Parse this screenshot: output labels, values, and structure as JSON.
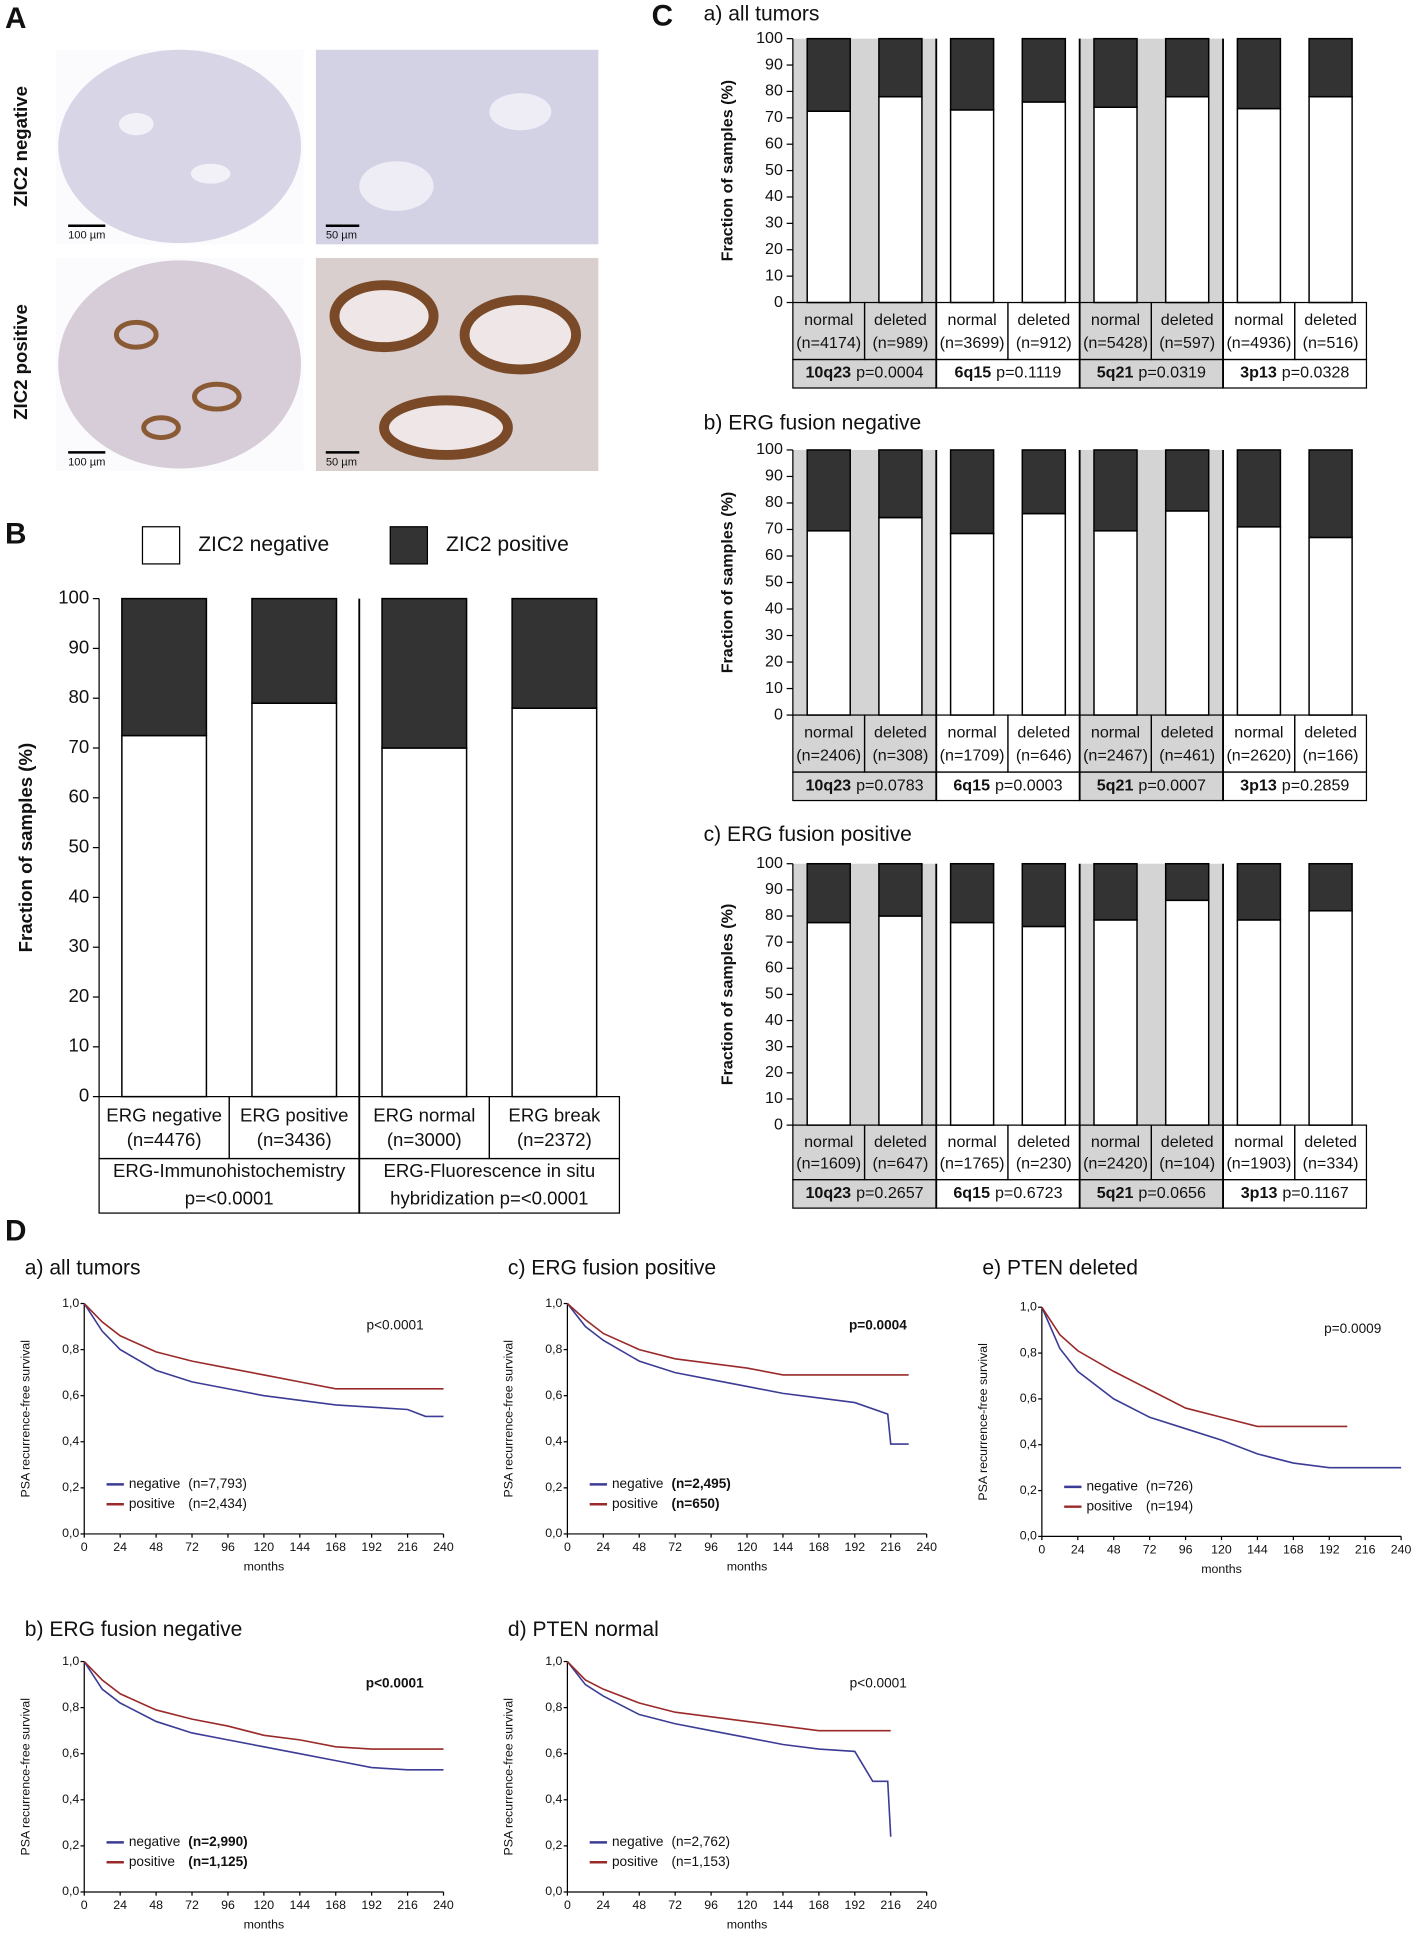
{
  "panel_labels": [
    "A",
    "B",
    "C",
    "D"
  ],
  "panel_a": {
    "row_labels": [
      "ZIC2 negative",
      "ZIC2 positive"
    ],
    "scale_bars": [
      "100 µm",
      "50 µm",
      "100 µm",
      "50 µm"
    ]
  },
  "chart_data": [
    {
      "type": "stacked_bar",
      "ylabel": "Fraction of samples (%)",
      "legend": true,
      "categories": [
        "ERG negative",
        "ERG positive",
        "ERG normal",
        "ERG break"
      ],
      "category_counts": [
        "(n=4476)",
        "(n=3436)",
        "(n=3000)",
        "(n=2372)"
      ],
      "groups": [
        {
          "lines": [
            "ERG-Immunohistochemistry",
            "p=<0.0001"
          ]
        },
        {
          "lines": [
            "ERG-Fluorescence in situ",
            "hybridization p=<0.0001"
          ]
        }
      ],
      "series": [
        {
          "name": "ZIC2 negative",
          "color": "#ffffff",
          "values": [
            72.5,
            79,
            70,
            78
          ]
        },
        {
          "name": "ZIC2 positive",
          "color": "#333333",
          "values": [
            27.5,
            21,
            30,
            22
          ]
        }
      ],
      "ylim": [
        0,
        100
      ],
      "yticks": [
        0,
        10,
        20,
        30,
        40,
        50,
        60,
        70,
        80,
        90,
        100
      ]
    },
    {
      "type": "stacked_bar",
      "title": "a) all tumors",
      "ylabel": "Fraction of samples (%)",
      "categories": [
        "normal",
        "deleted",
        "normal",
        "deleted",
        "normal",
        "deleted",
        "normal",
        "deleted"
      ],
      "category_counts": [
        "(n=4174)",
        "(n=989)",
        "(n=3699)",
        "(n=912)",
        "(n=5428)",
        "(n=597)",
        "(n=4936)",
        "(n=516)"
      ],
      "groups": [
        {
          "name": "10q23",
          "stat": "p=0.0004",
          "shaded": true
        },
        {
          "name": "6q15",
          "stat": "p=0.1119",
          "shaded": false
        },
        {
          "name": "5q21",
          "stat": "p=0.0319",
          "shaded": true
        },
        {
          "name": "3p13",
          "stat": "p=0.0328",
          "shaded": false
        }
      ],
      "series": [
        {
          "name": "ZIC2 negative",
          "color": "#ffffff",
          "values": [
            72.5,
            78,
            73,
            76,
            74,
            78,
            73.5,
            78
          ]
        },
        {
          "name": "ZIC2 positive",
          "color": "#333333",
          "values": [
            27.5,
            22,
            27,
            24,
            26,
            22,
            26.5,
            22
          ]
        }
      ],
      "ylim": [
        0,
        100
      ],
      "yticks": [
        0,
        10,
        20,
        30,
        40,
        50,
        60,
        70,
        80,
        90,
        100
      ]
    },
    {
      "type": "stacked_bar",
      "title": "b) ERG fusion negative",
      "ylabel": "Fraction of samples (%)",
      "categories": [
        "normal",
        "deleted",
        "normal",
        "deleted",
        "normal",
        "deleted",
        "normal",
        "deleted"
      ],
      "category_counts": [
        "(n=2406)",
        "(n=308)",
        "(n=1709)",
        "(n=646)",
        "(n=2467)",
        "(n=461)",
        "(n=2620)",
        "(n=166)"
      ],
      "groups": [
        {
          "name": "10q23",
          "stat": "p=0.0783",
          "shaded": true
        },
        {
          "name": "6q15",
          "stat": "p=0.0003",
          "shaded": false
        },
        {
          "name": "5q21",
          "stat": "p=0.0007",
          "shaded": true
        },
        {
          "name": "3p13",
          "stat": "p=0.2859",
          "shaded": false
        }
      ],
      "series": [
        {
          "name": "ZIC2 negative",
          "color": "#ffffff",
          "values": [
            69.5,
            74.5,
            68.5,
            76,
            69.5,
            77,
            71,
            67
          ]
        },
        {
          "name": "ZIC2 positive",
          "color": "#333333",
          "values": [
            30.5,
            25.5,
            31.5,
            24,
            30.5,
            23,
            29,
            33
          ]
        }
      ],
      "ylim": [
        0,
        100
      ],
      "yticks": [
        0,
        10,
        20,
        30,
        40,
        50,
        60,
        70,
        80,
        90,
        100
      ]
    },
    {
      "type": "stacked_bar",
      "title": "c) ERG fusion positive",
      "ylabel": "Fraction of samples (%)",
      "categories": [
        "normal",
        "deleted",
        "normal",
        "deleted",
        "normal",
        "deleted",
        "normal",
        "deleted"
      ],
      "category_counts": [
        "(n=1609)",
        "(n=647)",
        "(n=1765)",
        "(n=230)",
        "(n=2420)",
        "(n=104)",
        "(n=1903)",
        "(n=334)"
      ],
      "groups": [
        {
          "name": "10q23",
          "stat": "p=0.2657",
          "shaded": true
        },
        {
          "name": "6q15",
          "stat": "p=0.6723",
          "shaded": false
        },
        {
          "name": "5q21",
          "stat": "p=0.0656",
          "shaded": true
        },
        {
          "name": "3p13",
          "stat": "p=0.1167",
          "shaded": false
        }
      ],
      "series": [
        {
          "name": "ZIC2 negative",
          "color": "#ffffff",
          "values": [
            77.5,
            80,
            77.5,
            76,
            78.5,
            86,
            78.5,
            82
          ]
        },
        {
          "name": "ZIC2 positive",
          "color": "#333333",
          "values": [
            22.5,
            20,
            22.5,
            24,
            21.5,
            14,
            21.5,
            18
          ]
        }
      ],
      "ylim": [
        0,
        100
      ],
      "yticks": [
        0,
        10,
        20,
        30,
        40,
        50,
        60,
        70,
        80,
        90,
        100
      ]
    },
    {
      "type": "line",
      "title": "a) all tumors",
      "xlabel": "months",
      "ylabel": "PSA recurrence-free survival",
      "p_value": "p<0.0001",
      "emphasis": false,
      "series": [
        {
          "name": "negative",
          "n_label": "(n=7,793)",
          "color": "#3c3c96",
          "x": [
            0,
            12,
            24,
            48,
            72,
            96,
            120,
            144,
            168,
            192,
            216,
            228,
            240
          ],
          "values": [
            1,
            0.88,
            0.8,
            0.71,
            0.66,
            0.63,
            0.6,
            0.58,
            0.56,
            0.55,
            0.54,
            0.51,
            0.51
          ]
        },
        {
          "name": "positive",
          "n_label": "(n=2,434)",
          "color": "#9a2a2a",
          "x": [
            0,
            12,
            24,
            48,
            72,
            96,
            120,
            144,
            168,
            192,
            216,
            240
          ],
          "values": [
            1,
            0.92,
            0.86,
            0.79,
            0.75,
            0.72,
            0.69,
            0.66,
            0.63,
            0.63,
            0.63,
            0.63
          ]
        }
      ],
      "xlim": [
        0,
        240
      ],
      "xticks": [
        0,
        24,
        48,
        72,
        96,
        120,
        144,
        168,
        192,
        216,
        240
      ],
      "ylim": [
        0,
        1
      ],
      "yticks": [
        {
          "value": 0,
          "label": "0,0"
        },
        {
          "value": 0.2,
          "label": "0,2"
        },
        {
          "value": 0.4,
          "label": "0,4"
        },
        {
          "value": 0.6,
          "label": "0,6"
        },
        {
          "value": 0.8,
          "label": "0,8"
        },
        {
          "value": 1,
          "label": "1,0"
        }
      ]
    },
    {
      "type": "line",
      "title": "c) ERG fusion positive",
      "xlabel": "months",
      "ylabel": "PSA recurrence-free survival",
      "p_value": "p=0.0004",
      "emphasis": true,
      "series": [
        {
          "name": "negative",
          "n_label": "(n=2,495)",
          "color": "#3c3c96",
          "x": [
            0,
            12,
            24,
            48,
            72,
            96,
            120,
            144,
            168,
            192,
            214,
            216,
            228
          ],
          "values": [
            1,
            0.9,
            0.84,
            0.75,
            0.7,
            0.67,
            0.64,
            0.61,
            0.59,
            0.57,
            0.52,
            0.39,
            0.39
          ]
        },
        {
          "name": "positive",
          "n_label": "(n=650)",
          "color": "#9a2a2a",
          "x": [
            0,
            12,
            24,
            48,
            72,
            96,
            120,
            144,
            168,
            192,
            228
          ],
          "values": [
            1,
            0.93,
            0.87,
            0.8,
            0.76,
            0.74,
            0.72,
            0.69,
            0.69,
            0.69,
            0.69
          ]
        }
      ],
      "xlim": [
        0,
        240
      ],
      "xticks": [
        0,
        24,
        48,
        72,
        96,
        120,
        144,
        168,
        192,
        216,
        240
      ],
      "ylim": [
        0,
        1
      ],
      "yticks": [
        {
          "value": 0,
          "label": "0,0"
        },
        {
          "value": 0.2,
          "label": "0,2"
        },
        {
          "value": 0.4,
          "label": "0,4"
        },
        {
          "value": 0.6,
          "label": "0,6"
        },
        {
          "value": 0.8,
          "label": "0,8"
        },
        {
          "value": 1,
          "label": "1,0"
        }
      ]
    },
    {
      "type": "line",
      "title": "e) PTEN deleted",
      "xlabel": "months",
      "ylabel": "PSA recurrence-free survival",
      "p_value": "p=0.0009",
      "emphasis": false,
      "series": [
        {
          "name": "negative",
          "n_label": "(n=726)",
          "color": "#3c3c96",
          "x": [
            0,
            12,
            24,
            48,
            72,
            96,
            120,
            144,
            168,
            192,
            216,
            240
          ],
          "values": [
            1,
            0.82,
            0.72,
            0.6,
            0.52,
            0.47,
            0.42,
            0.36,
            0.32,
            0.3,
            0.3,
            0.3
          ]
        },
        {
          "name": "positive",
          "n_label": "(n=194)",
          "color": "#9a2a2a",
          "x": [
            0,
            12,
            24,
            48,
            72,
            96,
            120,
            144,
            168,
            204
          ],
          "values": [
            1,
            0.88,
            0.81,
            0.72,
            0.64,
            0.56,
            0.52,
            0.48,
            0.48,
            0.48
          ]
        }
      ],
      "xlim": [
        0,
        240
      ],
      "xticks": [
        0,
        24,
        48,
        72,
        96,
        120,
        144,
        168,
        192,
        216,
        240
      ],
      "ylim": [
        0,
        1
      ],
      "yticks": [
        {
          "value": 0,
          "label": "0,0"
        },
        {
          "value": 0.2,
          "label": "0,2"
        },
        {
          "value": 0.4,
          "label": "0,4"
        },
        {
          "value": 0.6,
          "label": "0,6"
        },
        {
          "value": 0.8,
          "label": "0,8"
        },
        {
          "value": 1,
          "label": "1,0"
        }
      ]
    },
    {
      "type": "line",
      "title": "b) ERG fusion negative",
      "xlabel": "months",
      "ylabel": "PSA recurrence-free survival",
      "p_value": "p<0.0001",
      "emphasis": true,
      "series": [
        {
          "name": "negative",
          "n_label": "(n=2,990)",
          "color": "#3c3c96",
          "x": [
            0,
            12,
            24,
            48,
            72,
            96,
            120,
            144,
            168,
            192,
            216,
            240
          ],
          "values": [
            1,
            0.88,
            0.82,
            0.74,
            0.69,
            0.66,
            0.63,
            0.6,
            0.57,
            0.54,
            0.53,
            0.53
          ]
        },
        {
          "name": "positive",
          "n_label": "(n=1,125)",
          "color": "#9a2a2a",
          "x": [
            0,
            12,
            24,
            48,
            72,
            96,
            120,
            144,
            168,
            192,
            216,
            240
          ],
          "values": [
            1,
            0.92,
            0.86,
            0.79,
            0.75,
            0.72,
            0.68,
            0.66,
            0.63,
            0.62,
            0.62,
            0.62
          ]
        }
      ],
      "xlim": [
        0,
        240
      ],
      "xticks": [
        0,
        24,
        48,
        72,
        96,
        120,
        144,
        168,
        192,
        216,
        240
      ],
      "ylim": [
        0,
        1
      ],
      "yticks": [
        {
          "value": 0,
          "label": "0,0"
        },
        {
          "value": 0.2,
          "label": "0,2"
        },
        {
          "value": 0.4,
          "label": "0,4"
        },
        {
          "value": 0.6,
          "label": "0,6"
        },
        {
          "value": 0.8,
          "label": "0,8"
        },
        {
          "value": 1,
          "label": "1,0"
        }
      ]
    },
    {
      "type": "line",
      "title": "d) PTEN normal",
      "xlabel": "months",
      "ylabel": "PSA  recurrence-free survival",
      "p_value": "p<0.0001",
      "emphasis": false,
      "series": [
        {
          "name": "negative",
          "n_label": "(n=2,762)",
          "color": "#3c3c96",
          "x": [
            0,
            12,
            24,
            48,
            72,
            96,
            120,
            144,
            168,
            192,
            204,
            214,
            216
          ],
          "values": [
            1,
            0.9,
            0.85,
            0.77,
            0.73,
            0.7,
            0.67,
            0.64,
            0.62,
            0.61,
            0.48,
            0.48,
            0.24
          ]
        },
        {
          "name": "positive",
          "n_label": "(n=1,153)",
          "color": "#9a2a2a",
          "x": [
            0,
            12,
            24,
            48,
            72,
            96,
            120,
            144,
            168,
            192,
            216
          ],
          "values": [
            1,
            0.92,
            0.88,
            0.82,
            0.78,
            0.76,
            0.74,
            0.72,
            0.7,
            0.7,
            0.7
          ]
        }
      ],
      "xlim": [
        0,
        240
      ],
      "xticks": [
        0,
        24,
        48,
        72,
        96,
        120,
        144,
        168,
        192,
        216,
        240
      ],
      "ylim": [
        0,
        1
      ],
      "yticks": [
        {
          "value": 0,
          "label": "0,0"
        },
        {
          "value": 0.2,
          "label": "0,2"
        },
        {
          "value": 0.4,
          "label": "0,4"
        },
        {
          "value": 0.6,
          "label": "0,6"
        },
        {
          "value": 0.8,
          "label": "0,8"
        },
        {
          "value": 1,
          "label": "1,0"
        }
      ]
    }
  ]
}
